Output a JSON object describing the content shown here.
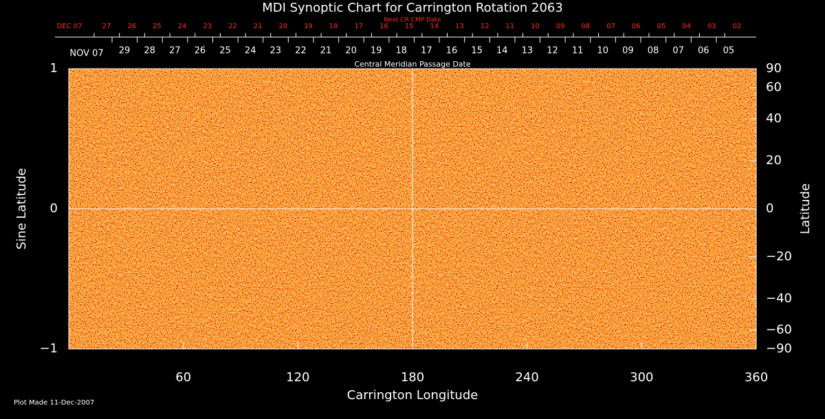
{
  "chart_data": {
    "type": "synoptic-map",
    "title": "MDI Synoptic Chart for Carrington Rotation 2063",
    "next_label": "Next CR CMP Date",
    "next_dates": [
      "DEC 07",
      "27",
      "26",
      "25",
      "24",
      "23",
      "22",
      "21",
      "20",
      "19",
      "18",
      "17",
      "16",
      "15",
      "14",
      "13",
      "12",
      "11",
      "10",
      "09",
      "08",
      "07",
      "06",
      "05",
      "04",
      "03",
      "02"
    ],
    "cmp_dates": [
      "NOV 07",
      "29",
      "28",
      "27",
      "26",
      "25",
      "24",
      "23",
      "22",
      "21",
      "20",
      "19",
      "18",
      "17",
      "16",
      "15",
      "14",
      "13",
      "12",
      "11",
      "10",
      "09",
      "08",
      "07",
      "06",
      "05"
    ],
    "cmp_label": "Central Meridian Passage Date",
    "x_label": "Carrington Longitude",
    "y_label": "Sine Latitude",
    "y2_label": "Latitude",
    "xlim": [
      0,
      360
    ],
    "xticks": [
      60,
      120,
      180,
      240,
      300,
      360
    ],
    "ylim": [
      -1,
      1
    ],
    "yticks": [
      {
        "value": -1,
        "label": "−1"
      },
      0,
      1
    ],
    "y2lim": [
      -90,
      90
    ],
    "y2_scale": "sine",
    "y2ticks": [
      {
        "value": -90,
        "label": "−90"
      },
      {
        "value": -60,
        "label": "−60"
      },
      {
        "value": -40,
        "label": "−40"
      },
      {
        "value": -20,
        "label": "−20"
      },
      0,
      20,
      40,
      60,
      90
    ],
    "footer": "Plot Made 11-Dec-2007"
  }
}
